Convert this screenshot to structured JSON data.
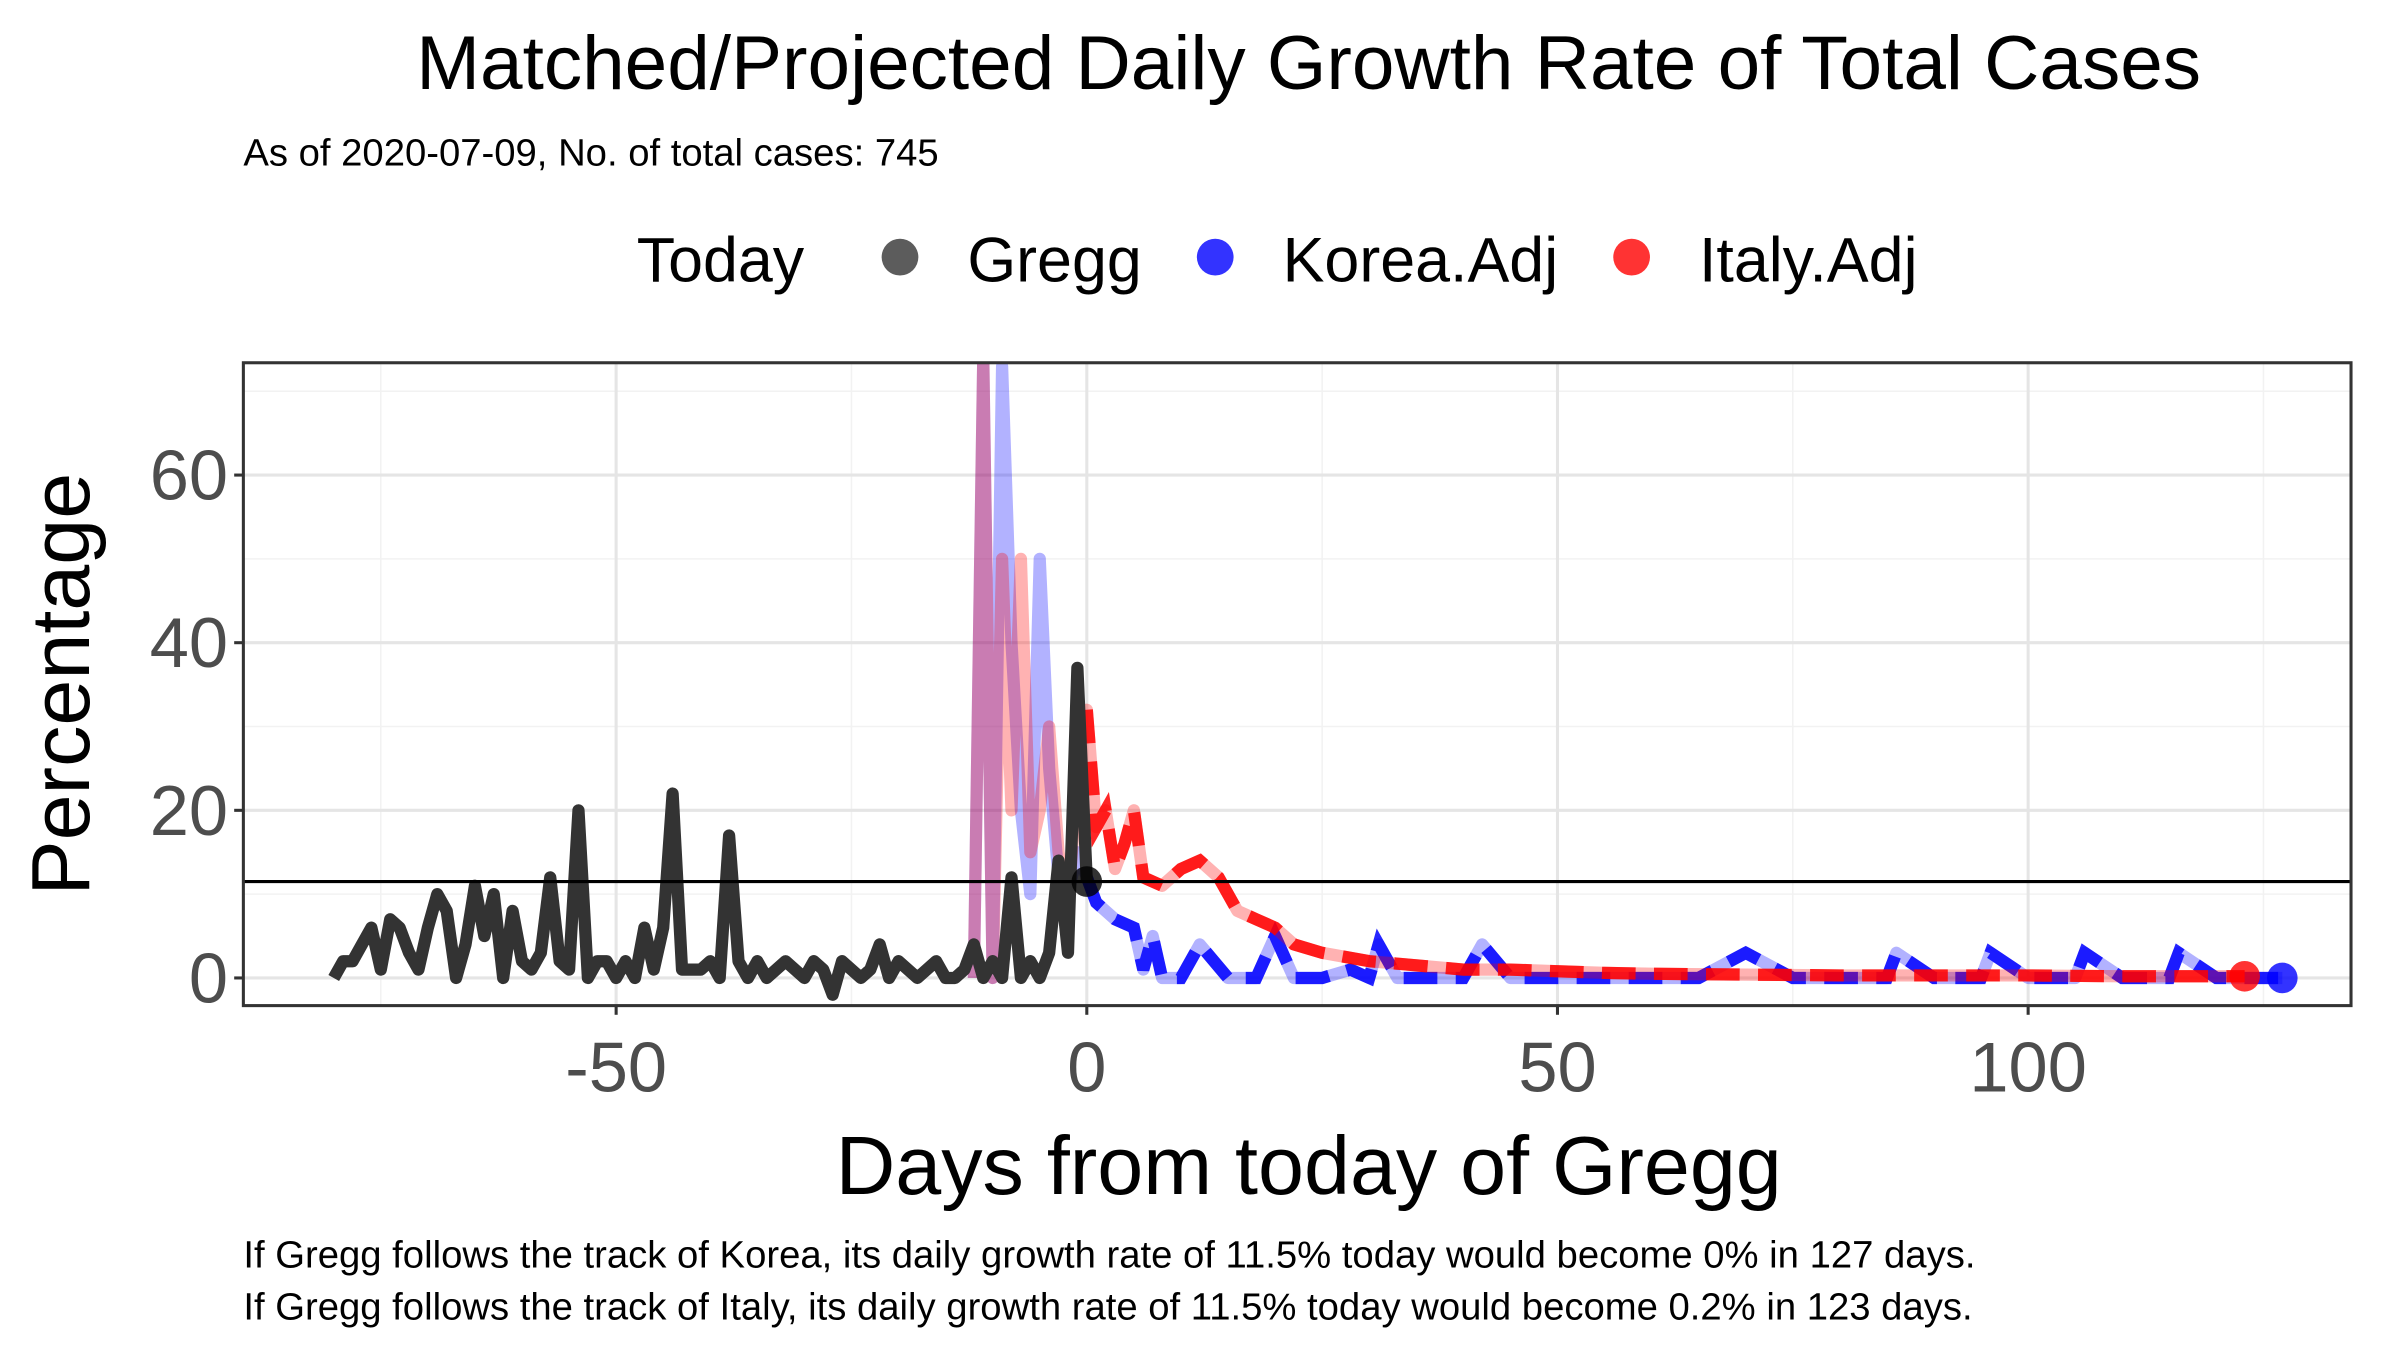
{
  "chart_data": {
    "type": "line",
    "title": "Matched/Projected Daily Growth Rate of Total Cases",
    "subtitle": "As of 2020-07-09, No. of total cases: 745",
    "legend_title": "Today",
    "x_label": "Days from today of Gregg",
    "y_label": "Percentage",
    "notes": [
      "If Gregg follows the track of Korea, its daily growth rate of 11.5% today would become 0% in 127 days.",
      "If Gregg follows the track of Italy, its daily growth rate of 11.5% today would become 0.2% in 123 days."
    ],
    "xlim": [
      -89.6,
      134.3
    ],
    "ylim": [
      -3.3,
      73.4
    ],
    "xticks": [
      -50,
      0,
      50,
      100
    ],
    "yticks": [
      0,
      20,
      40,
      60
    ],
    "xgrid": [
      -75,
      -25,
      25,
      75,
      125
    ],
    "ygrid": [
      10,
      30,
      50,
      70
    ],
    "grid": true,
    "today": {
      "x": 0,
      "value": 11.5,
      "color": "#000000"
    },
    "series": [
      {
        "name": "Gregg",
        "color": "#333333",
        "x": [
          -80,
          -79,
          -78,
          -77,
          -76,
          -75,
          -74,
          -73,
          -72,
          -71,
          -70,
          -69,
          -68,
          -67,
          -66,
          -65,
          -64,
          -63,
          -62,
          -61,
          -60,
          -59,
          -58,
          -57,
          -56,
          -55,
          -54,
          -53,
          -52,
          -51,
          -50,
          -49,
          -48,
          -47,
          -46,
          -45,
          -44,
          -43,
          -42,
          -41,
          -40,
          -39,
          -38,
          -37,
          -36,
          -35,
          -34,
          -33,
          -32,
          -31,
          -30,
          -29,
          -28,
          -27,
          -26,
          -25,
          -24,
          -23,
          -22,
          -21,
          -20,
          -19,
          -18,
          -17,
          -16,
          -15,
          -14,
          -13,
          -12,
          -11,
          -10,
          -9,
          -8,
          -7,
          -6,
          -5,
          -4,
          -3,
          -2,
          -1,
          0
        ],
        "values": [
          0,
          2,
          2,
          4,
          6,
          1,
          7,
          6,
          3,
          1,
          6,
          10,
          8,
          0,
          4,
          11,
          5,
          10,
          0,
          8,
          2,
          1,
          3,
          12,
          2,
          1,
          20,
          0,
          2,
          2,
          0,
          2,
          0,
          6,
          1,
          6,
          22,
          1,
          1,
          1,
          2,
          0,
          17,
          2,
          0,
          2,
          0,
          1,
          2,
          1,
          0,
          2,
          1,
          -2,
          2,
          1,
          0,
          1,
          4,
          0,
          2,
          1,
          0,
          1,
          2,
          0,
          0,
          1,
          4,
          0,
          2,
          0,
          12,
          0,
          2,
          0,
          3,
          14,
          3,
          37,
          11.5
        ]
      },
      {
        "name": "Korea.Adj",
        "color": "#0000ff",
        "x": [
          -12,
          -11,
          -10,
          -9,
          -8,
          -7,
          -6,
          -5,
          -4,
          -3,
          -2,
          -1,
          0,
          1,
          3,
          5,
          6,
          7,
          8,
          10,
          12,
          15,
          18,
          20,
          22,
          25,
          28,
          30,
          31,
          33,
          35,
          40,
          42,
          45,
          50,
          55,
          60,
          65,
          70,
          75,
          80,
          85,
          86,
          90,
          95,
          96,
          100,
          105,
          106,
          110,
          115,
          116,
          120,
          122,
          127
        ],
        "values": [
          0,
          74,
          0,
          73,
          40,
          20,
          10,
          50,
          25,
          12,
          10,
          15,
          12,
          9,
          7,
          6,
          1,
          5,
          0,
          0,
          4,
          0,
          0,
          5,
          0,
          0,
          1,
          0,
          4,
          0,
          0,
          0,
          4,
          0,
          0,
          0,
          0,
          0,
          3,
          0,
          0,
          0,
          3,
          0,
          0,
          3,
          0,
          0,
          3,
          0,
          0,
          3,
          0,
          0,
          0
        ]
      },
      {
        "name": "Italy.Adj",
        "color": "#ff0000",
        "x": [
          -12,
          -11,
          -10,
          -9,
          -8,
          -7,
          -6,
          -5,
          -4,
          -3,
          -2,
          -1,
          0,
          1,
          2,
          3,
          4,
          5,
          6,
          8,
          10,
          12,
          14,
          16,
          18,
          20,
          22,
          25,
          30,
          35,
          40,
          45,
          50,
          55,
          60,
          70,
          80,
          90,
          100,
          110,
          123
        ],
        "values": [
          0,
          74,
          0,
          50,
          20,
          50,
          15,
          20,
          30,
          15,
          8,
          25,
          32,
          18,
          20,
          13,
          16,
          20,
          12,
          11,
          13,
          14,
          12,
          8,
          7,
          6,
          4,
          3,
          2,
          1.5,
          1,
          1,
          0.8,
          0.6,
          0.5,
          0.4,
          0.3,
          0.3,
          0.3,
          0.2,
          0.2
        ]
      }
    ]
  }
}
